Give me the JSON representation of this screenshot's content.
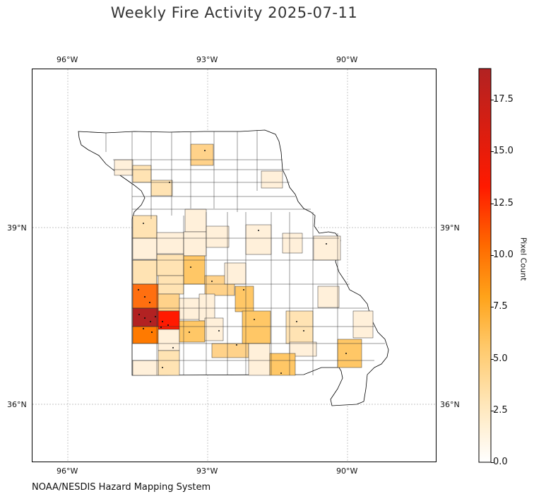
{
  "title": "Weekly Fire Activity 2025-07-11",
  "credit": "NOAA/NESDIS Hazard Mapping System",
  "axes": {
    "lon_ticks_top": [
      "96°W",
      "93°W",
      "90°W"
    ],
    "lon_ticks_bottom": [
      "96°W",
      "93°W",
      "90°W"
    ],
    "lat_ticks_left": [
      "39°N",
      "36°N"
    ],
    "lat_ticks_right": [
      "39°N",
      "36°N"
    ]
  },
  "colorbar": {
    "label": "Pixel Count",
    "ticks": [
      "17.5",
      "15.0",
      "12.5",
      "10.0",
      "7.5",
      "5.0",
      "2.5",
      "0.0"
    ],
    "range": [
      0,
      19
    ],
    "colormap": [
      "#ffffff",
      "#ffe6b8",
      "#ffc766",
      "#ffa31a",
      "#ff6a00",
      "#ff1a00",
      "#b22222"
    ]
  },
  "map": {
    "region": "Missouri",
    "lon_range": [
      -96.8,
      -88.1
    ],
    "lat_range": [
      35.0,
      41.7
    ],
    "county_counts_legend": "fill color encodes weekly fire pixel count per county"
  }
}
